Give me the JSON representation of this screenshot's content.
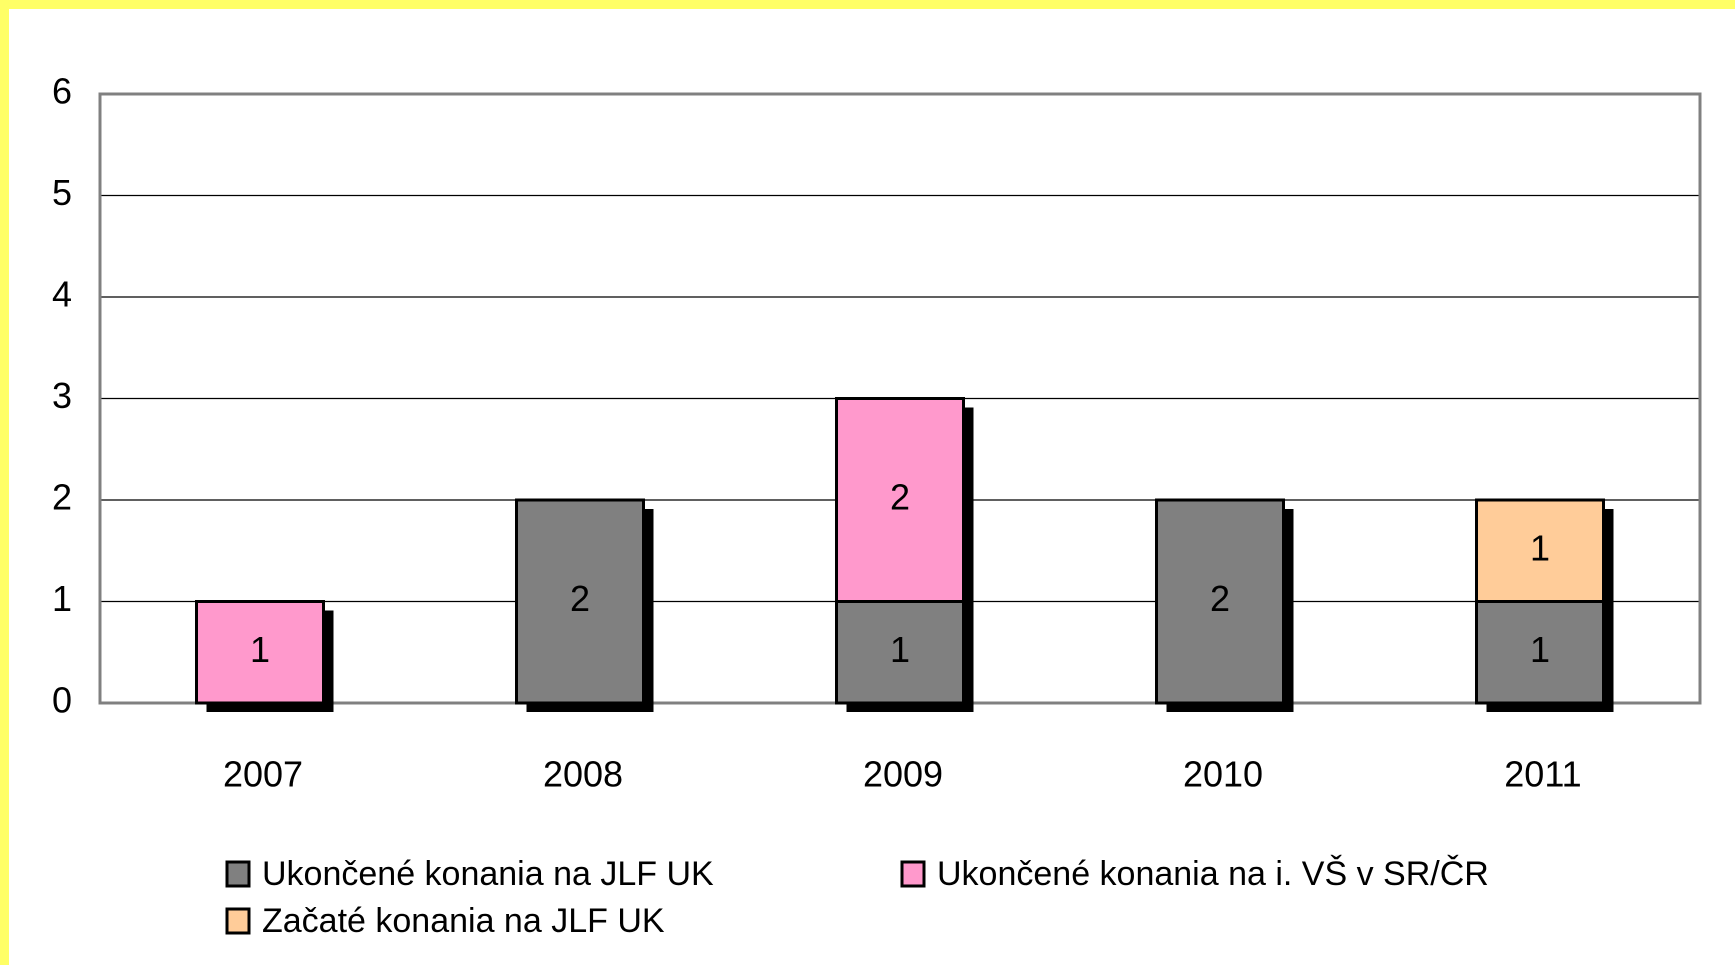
{
  "chart_data": {
    "type": "bar",
    "stacked": true,
    "categories": [
      "2007",
      "2008",
      "2009",
      "2010",
      "2011"
    ],
    "series": [
      {
        "name": "Ukončené konania na JLF UK",
        "color": "#808080",
        "values": [
          null,
          2,
          1,
          2,
          1
        ]
      },
      {
        "name": "Ukončené konania na i. VŠ v SR/ČR",
        "color": "#ff99cc",
        "values": [
          1,
          null,
          2,
          null,
          null
        ]
      },
      {
        "name": "Začaté konania na JLF UK",
        "color": "#ffcc99",
        "values": [
          null,
          null,
          null,
          null,
          1
        ]
      }
    ],
    "ylim": [
      0,
      6
    ],
    "yticks": [
      0,
      1,
      2,
      3,
      4,
      5,
      6
    ],
    "grid": true,
    "legend": "bottom"
  }
}
